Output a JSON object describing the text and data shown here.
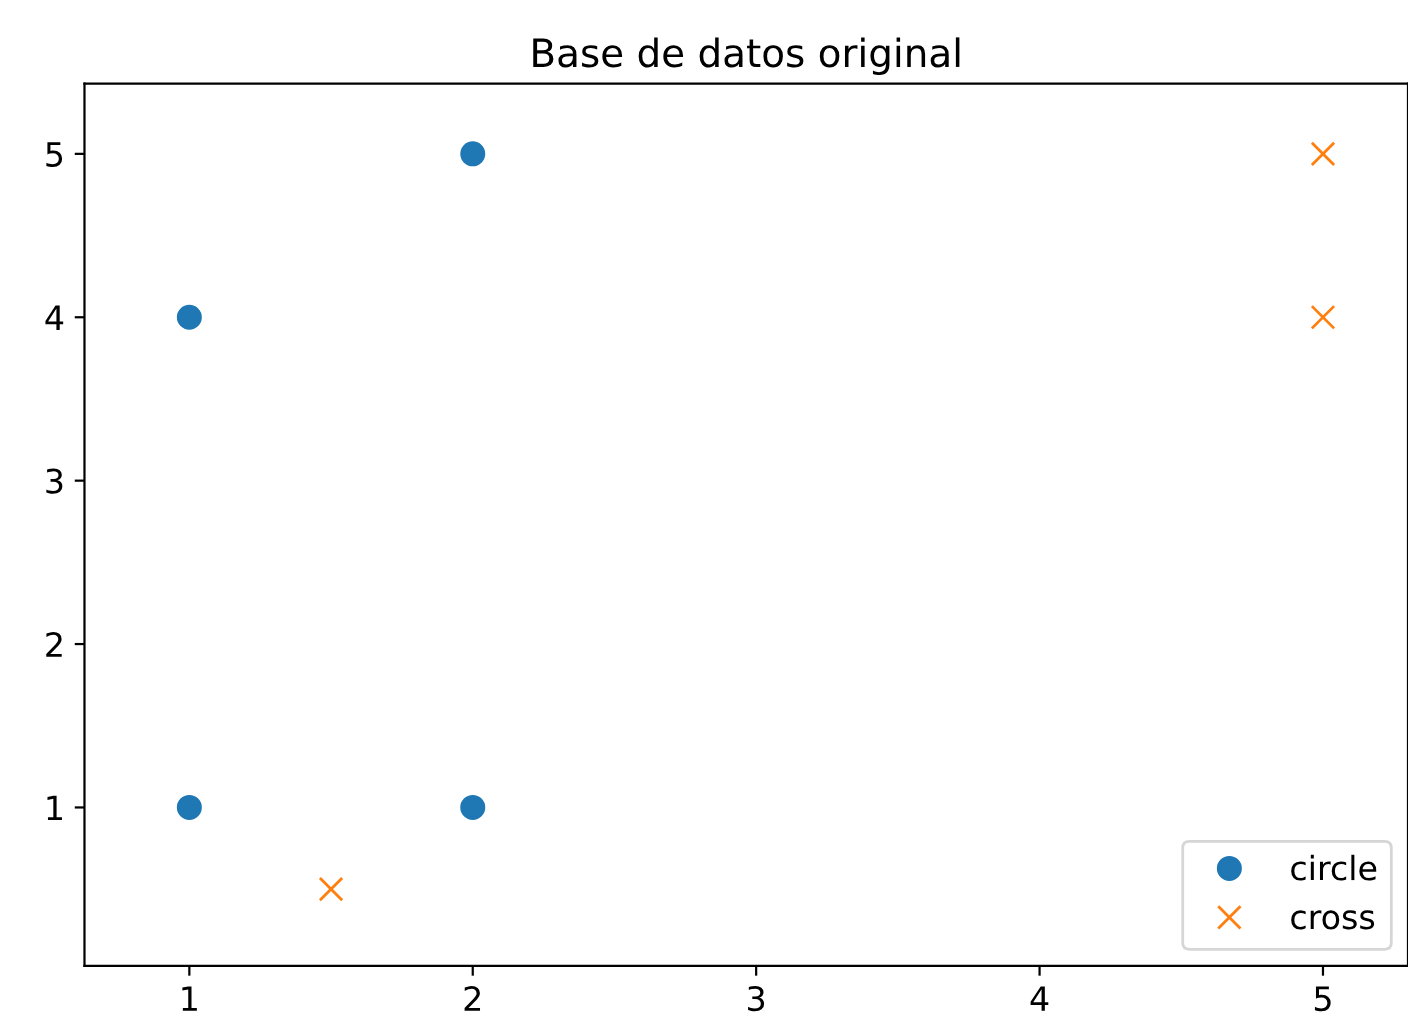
{
  "chart_data": {
    "type": "scatter",
    "title": "Base de datos original",
    "series": [
      {
        "name": "circle",
        "color": "#1f77b4",
        "marker": "circle",
        "x": [
          1,
          2,
          1,
          2
        ],
        "values": [
          4,
          5,
          1,
          1
        ]
      },
      {
        "name": "cross",
        "color": "#ff7f0e",
        "marker": "cross",
        "x": [
          1.5,
          5,
          5
        ],
        "values": [
          0.5,
          5,
          4
        ]
      }
    ],
    "xlim": [
      0.63,
      5.3
    ],
    "xticks": [
      1,
      2,
      3,
      4,
      5
    ],
    "ylim": [
      0.03,
      5.43
    ],
    "yticks": [
      1,
      2,
      3,
      4,
      5
    ],
    "grid": false,
    "legend": "bottom right"
  }
}
